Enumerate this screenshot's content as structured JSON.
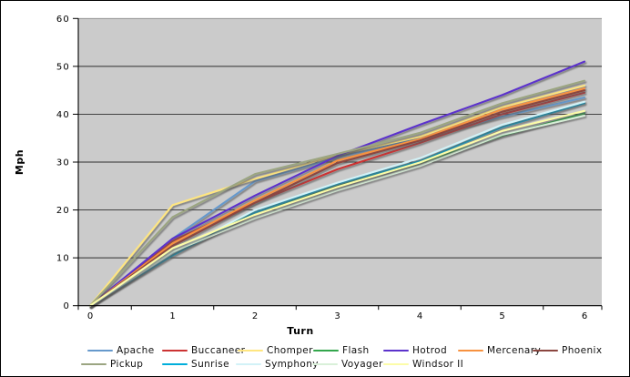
{
  "chart_data": {
    "type": "line",
    "title": "",
    "xlabel": "Turn",
    "ylabel": "Mph",
    "categories": [
      "0",
      "1",
      "2",
      "3",
      "4",
      "5",
      "6"
    ],
    "yticks": [
      0,
      10,
      20,
      30,
      40,
      50,
      60
    ],
    "ylim": [
      0,
      60
    ],
    "grid": true,
    "legend_position": "bottom",
    "plot_bg": "#CBCBCB",
    "gridline_color": "#2e2e2e",
    "top_border_color": "#8c8c8c",
    "axis_color": "#000000",
    "series": [
      {
        "name": "Apache",
        "color": "#6699CC",
        "values": [
          0,
          14,
          26,
          31,
          35,
          39.5,
          43.5
        ]
      },
      {
        "name": "Buccaneer",
        "color": "#CC3333",
        "values": [
          0,
          13.5,
          21.5,
          28.5,
          34,
          40,
          44.5
        ]
      },
      {
        "name": "Chomper",
        "color": "#FFE680",
        "values": [
          0,
          21,
          26.5,
          31.5,
          35.3,
          41.5,
          46
        ]
      },
      {
        "name": "Flash",
        "color": "#33A64C",
        "values": [
          0,
          11,
          19.5,
          25,
          29.8,
          35.5,
          40.2
        ]
      },
      {
        "name": "Hotrod",
        "color": "#5C33CC",
        "values": [
          0,
          14,
          23,
          31.3,
          37.8,
          44,
          51
        ]
      },
      {
        "name": "Mercenary",
        "color": "#F79240",
        "values": [
          0,
          13,
          22,
          30.3,
          34.8,
          41,
          45.4
        ]
      },
      {
        "name": "Phoenix",
        "color": "#8B4640",
        "values": [
          0,
          12.5,
          21.5,
          29.8,
          34.5,
          40.5,
          45
        ]
      },
      {
        "name": "Pickup",
        "color": "#9BA581",
        "values": [
          0,
          18.5,
          27.5,
          31.7,
          36.1,
          42.3,
          47
        ]
      },
      {
        "name": "Sunrise",
        "color": "#00AEDB",
        "values": [
          0,
          10.5,
          19.5,
          25.4,
          30.2,
          37.3,
          42.3
        ]
      },
      {
        "name": "Symphony",
        "color": "#D2F2F7",
        "values": [
          0,
          11,
          20,
          25.7,
          30.8,
          37.8,
          42.6
        ]
      },
      {
        "name": "Voyager",
        "color": "#D9F0D9",
        "values": [
          0,
          11.3,
          18.3,
          24.1,
          29.2,
          35.7,
          39.7
        ]
      },
      {
        "name": "Windsor II",
        "color": "#FCFCA8",
        "values": [
          0,
          12,
          19,
          24.8,
          29.9,
          36.5,
          40.7
        ]
      }
    ]
  }
}
